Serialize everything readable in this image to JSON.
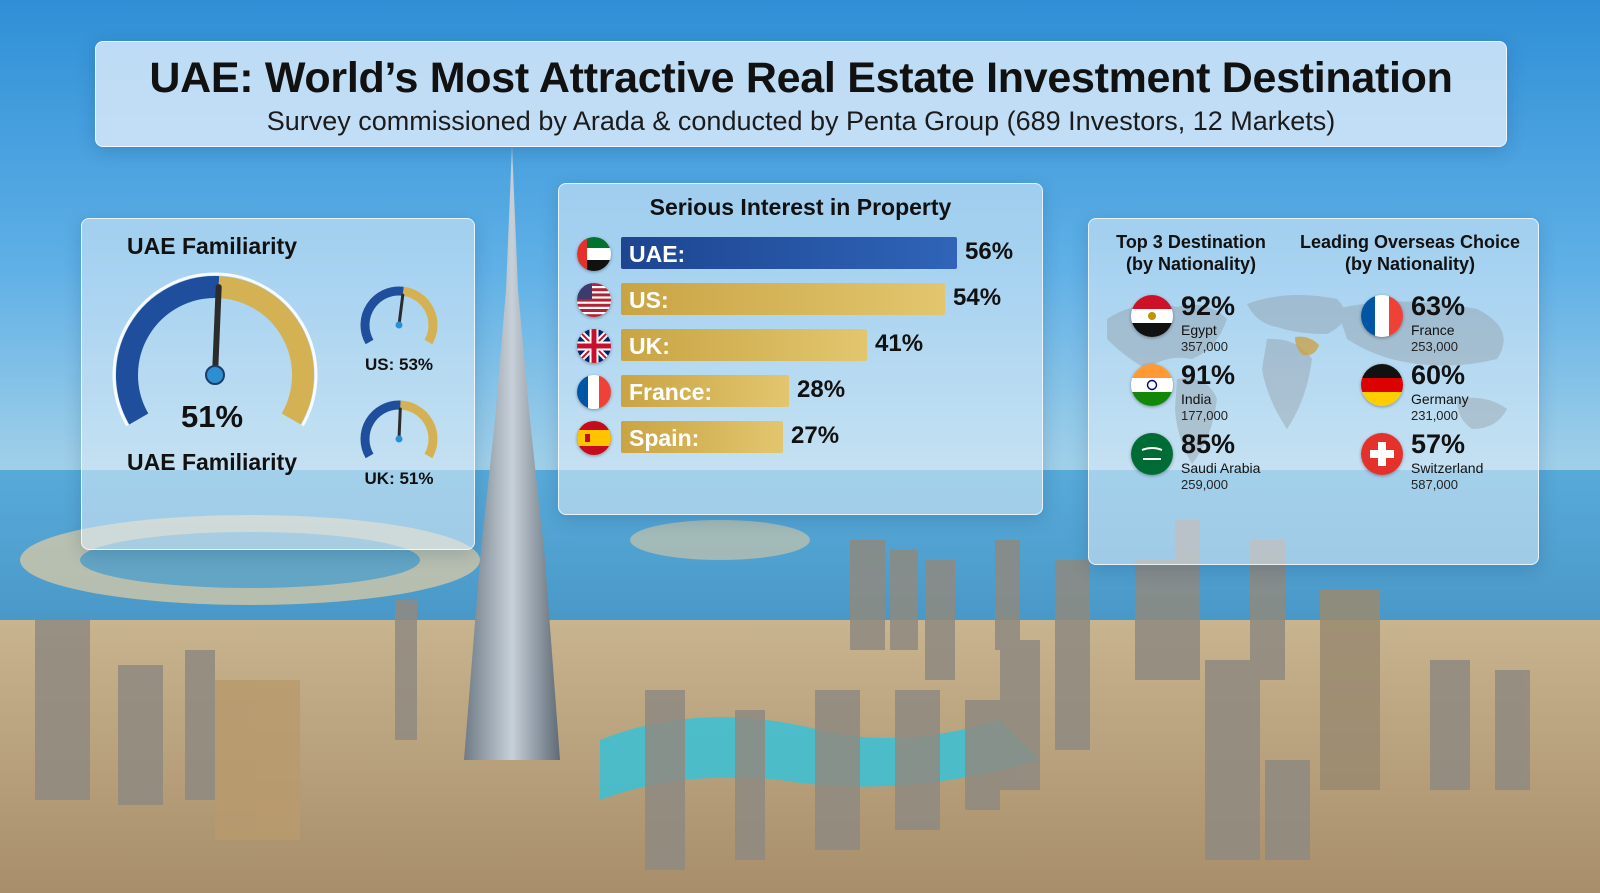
{
  "header": {
    "title": "UAE: World’s Most Attractive Real Estate Investment Destination",
    "subtitle": "Survey commissioned by Arada & conducted by Penta Group (689 Investors, 12 Markets)"
  },
  "colors": {
    "navy": "#1f4f9c",
    "gold": "#d4b253",
    "gauge_needle": "#2b2b2b",
    "gauge_hub": "#2d8fd1"
  },
  "chart_data": [
    {
      "type": "gauge",
      "title": "UAE Familiarity",
      "caption": "UAE Familiarity",
      "value": 51,
      "value_label": "51%",
      "small_gauges": [
        {
          "label": "US: 53%",
          "value": 53
        },
        {
          "label": "UK: 51%",
          "value": 51
        }
      ]
    },
    {
      "type": "bar",
      "orientation": "horizontal",
      "title": "Serious Interest in Property",
      "categories": [
        "UAE:",
        "US:",
        "UK:",
        "France:",
        "Spain:"
      ],
      "values": [
        56,
        54,
        41,
        28,
        27
      ],
      "value_labels": [
        "56%",
        "54%",
        "41%",
        "28%",
        "27%"
      ],
      "flags": [
        "uae-flag-icon",
        "us-flag-icon",
        "uk-flag-icon",
        "france-flag-icon",
        "spain-flag-icon"
      ],
      "bar_colors": [
        "#1f4f9c",
        "#d4b253",
        "#d4b253",
        "#d4b253",
        "#d4b253"
      ]
    },
    {
      "type": "table",
      "columns": [
        {
          "title": "Top 3 Destination\n(by Nationality)",
          "title_line1": "Top 3 Destination",
          "title_line2": "(by Nationality)",
          "items": [
            {
              "pct": "92%",
              "country": "Egypt",
              "count": "357,000",
              "flag": "egypt-flag-icon"
            },
            {
              "pct": "91%",
              "country": "India",
              "count": "177,000",
              "flag": "india-flag-icon"
            },
            {
              "pct": "85%",
              "country": "Saudi Arabia",
              "count": "259,000",
              "flag": "saudi-flag-icon"
            }
          ]
        },
        {
          "title": "Leading Overseas Choice\n(by Nationality)",
          "title_line1": "Leading Overseas Choice",
          "title_line2": "(by Nationality)",
          "items": [
            {
              "pct": "63%",
              "country": "France",
              "count": "253,000",
              "flag": "france-flag-icon"
            },
            {
              "pct": "60%",
              "country": "Germany",
              "count": "231,000",
              "flag": "germany-flag-icon"
            },
            {
              "pct": "57%",
              "country": "Switzerland",
              "count": "587,000",
              "flag": "switzerland-flag-icon"
            }
          ]
        }
      ]
    }
  ]
}
